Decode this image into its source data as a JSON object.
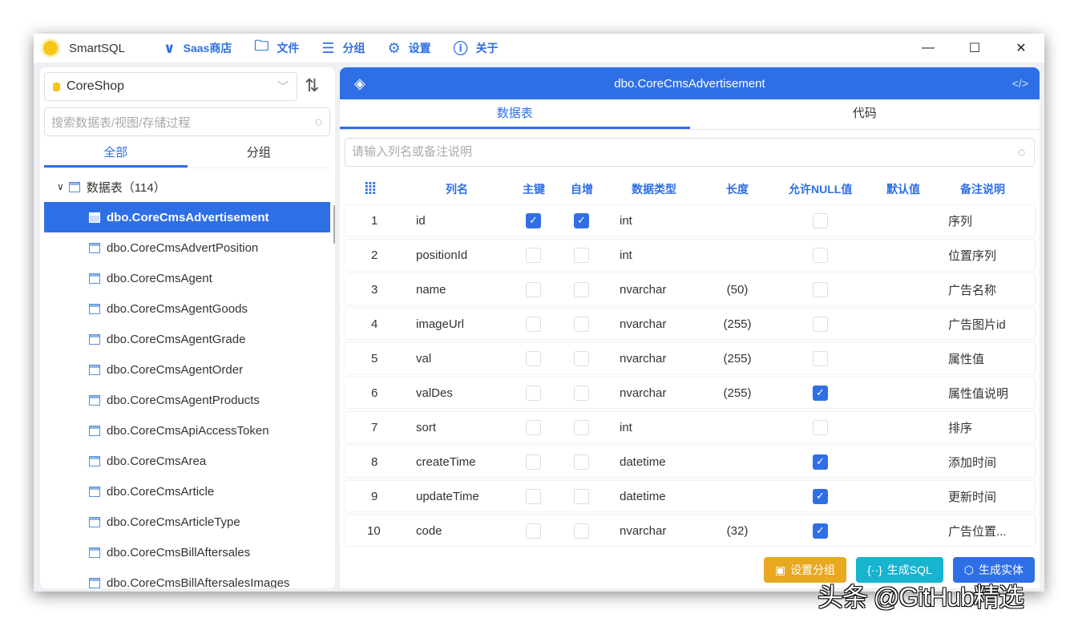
{
  "app": {
    "title": "SmartSQL",
    "menu": [
      {
        "label": "Saas商店",
        "icon": "chevron-down-icon"
      },
      {
        "label": "文件",
        "icon": "folder-icon"
      },
      {
        "label": "分组",
        "icon": "list-icon"
      },
      {
        "label": "设置",
        "icon": "gear-icon"
      },
      {
        "label": "关于",
        "icon": "info-icon"
      }
    ]
  },
  "sidebar": {
    "database": "CoreShop",
    "search_placeholder": "搜索数据表/视图/存储过程",
    "tabs": [
      "全部",
      "分组"
    ],
    "root_label": "数据表（114）",
    "items": [
      "dbo.CoreCmsAdvertisement",
      "dbo.CoreCmsAdvertPosition",
      "dbo.CoreCmsAgent",
      "dbo.CoreCmsAgentGoods",
      "dbo.CoreCmsAgentGrade",
      "dbo.CoreCmsAgentOrder",
      "dbo.CoreCmsAgentProducts",
      "dbo.CoreCmsApiAccessToken",
      "dbo.CoreCmsArea",
      "dbo.CoreCmsArticle",
      "dbo.CoreCmsArticleType",
      "dbo.CoreCmsBillAftersales",
      "dbo.CoreCmsBillAftersalesImages"
    ],
    "selected": 0
  },
  "main": {
    "title": "dbo.CoreCmsAdvertisement",
    "tabs": [
      "数据表",
      "代码"
    ],
    "search_placeholder": "请输入列名或备注说明",
    "columns": [
      "列名",
      "主键",
      "自增",
      "数据类型",
      "长度",
      "允许NULL值",
      "默认值",
      "备注说明"
    ],
    "rows": [
      {
        "n": "1",
        "name": "id",
        "pk": true,
        "ai": true,
        "type": "int",
        "len": "",
        "null": false,
        "def": "",
        "note": "序列"
      },
      {
        "n": "2",
        "name": "positionId",
        "pk": false,
        "ai": false,
        "type": "int",
        "len": "",
        "null": false,
        "def": "",
        "note": "位置序列"
      },
      {
        "n": "3",
        "name": "name",
        "pk": false,
        "ai": false,
        "type": "nvarchar",
        "len": "(50)",
        "null": false,
        "def": "",
        "note": "广告名称"
      },
      {
        "n": "4",
        "name": "imageUrl",
        "pk": false,
        "ai": false,
        "type": "nvarchar",
        "len": "(255)",
        "null": false,
        "def": "",
        "note": "广告图片id"
      },
      {
        "n": "5",
        "name": "val",
        "pk": false,
        "ai": false,
        "type": "nvarchar",
        "len": "(255)",
        "null": false,
        "def": "",
        "note": "属性值"
      },
      {
        "n": "6",
        "name": "valDes",
        "pk": false,
        "ai": false,
        "type": "nvarchar",
        "len": "(255)",
        "null": true,
        "def": "",
        "note": "属性值说明"
      },
      {
        "n": "7",
        "name": "sort",
        "pk": false,
        "ai": false,
        "type": "int",
        "len": "",
        "null": false,
        "def": "",
        "note": "排序"
      },
      {
        "n": "8",
        "name": "createTime",
        "pk": false,
        "ai": false,
        "type": "datetime",
        "len": "",
        "null": true,
        "def": "",
        "note": "添加时间"
      },
      {
        "n": "9",
        "name": "updateTime",
        "pk": false,
        "ai": false,
        "type": "datetime",
        "len": "",
        "null": true,
        "def": "",
        "note": "更新时间"
      },
      {
        "n": "10",
        "name": "code",
        "pk": false,
        "ai": false,
        "type": "nvarchar",
        "len": "(32)",
        "null": true,
        "def": "",
        "note": "广告位置..."
      }
    ],
    "buttons": [
      {
        "label": "设置分组",
        "color": "#e8a820"
      },
      {
        "label": "生成SQL",
        "color": "#17b3cf"
      },
      {
        "label": "生成实体",
        "color": "#2f6fe6"
      }
    ]
  },
  "watermark": "头条 @GitHub精选",
  "colors": {
    "accent": "#2f6fe6"
  }
}
